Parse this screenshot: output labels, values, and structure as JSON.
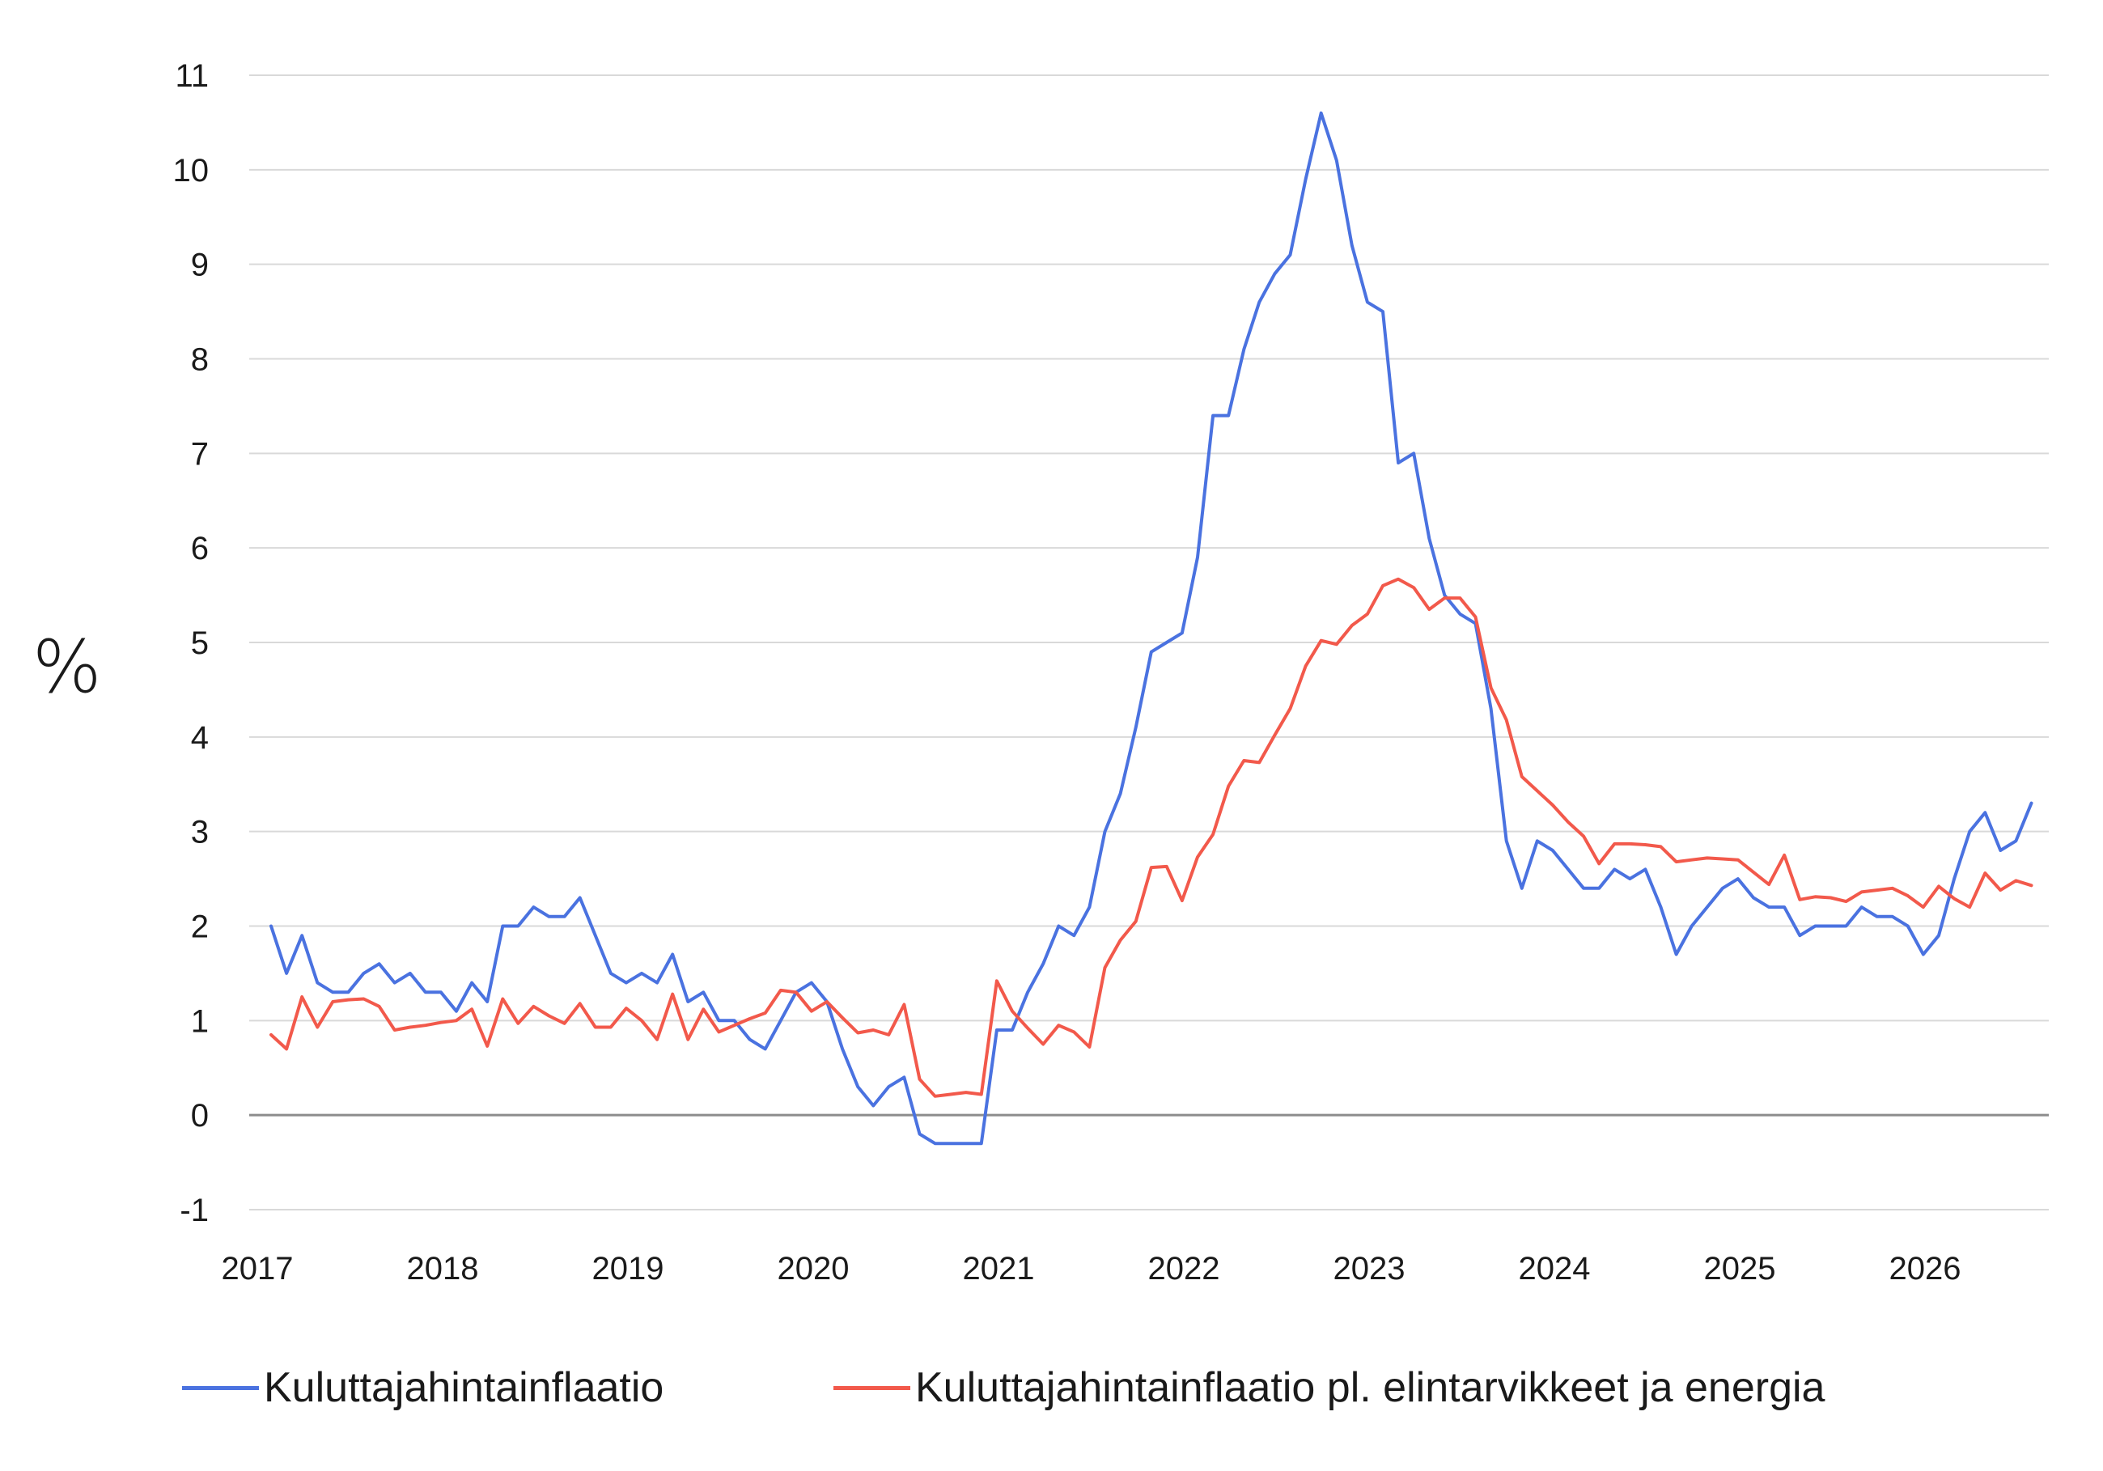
{
  "chart_data": {
    "type": "line",
    "title": "",
    "xlabel": "",
    "ylabel": "%",
    "ylim": [
      -1,
      11
    ],
    "yticks": [
      -1,
      0,
      1,
      2,
      3,
      4,
      5,
      6,
      7,
      8,
      9,
      10,
      11
    ],
    "xticks": [
      "2017",
      "2018",
      "2019",
      "2020",
      "2021",
      "2022",
      "2023",
      "2024",
      "2025",
      "2026"
    ],
    "grid": true,
    "legend_position": "bottom",
    "start": "2017-01",
    "frequency": "monthly",
    "series": [
      {
        "name": "Kuluttajahintainflaatio",
        "color": "#4a72e0",
        "values": [
          2.0,
          1.5,
          1.9,
          1.4,
          1.3,
          1.3,
          1.5,
          1.6,
          1.4,
          1.5,
          1.3,
          1.3,
          1.1,
          1.4,
          1.2,
          2.0,
          2.0,
          2.2,
          2.1,
          2.1,
          2.3,
          1.9,
          1.5,
          1.4,
          1.5,
          1.4,
          1.7,
          1.2,
          1.3,
          1.0,
          1.0,
          0.8,
          0.7,
          1.0,
          1.3,
          1.4,
          1.2,
          0.7,
          0.3,
          0.1,
          0.3,
          0.4,
          -0.2,
          -0.3,
          -0.3,
          -0.3,
          -0.3,
          0.9,
          0.9,
          1.3,
          1.6,
          2.0,
          1.9,
          2.2,
          3.0,
          3.4,
          4.1,
          4.9,
          5.0,
          5.1,
          5.9,
          7.4,
          7.4,
          8.1,
          8.6,
          8.9,
          9.1,
          9.9,
          10.6,
          10.1,
          9.2,
          8.6,
          8.5,
          6.9,
          7.0,
          6.1,
          5.5,
          5.3,
          5.2,
          4.3,
          2.9,
          2.4,
          2.9,
          2.8,
          2.6,
          2.4,
          2.4,
          2.6,
          2.5,
          2.6,
          2.2,
          1.7,
          2.0,
          2.2,
          2.4,
          2.5,
          2.3,
          2.2,
          2.2,
          1.9,
          2.0,
          2.0,
          2.0,
          2.2,
          2.1,
          2.1,
          2.0,
          1.7,
          1.9,
          2.5,
          3.0,
          3.2,
          2.8,
          2.9,
          3.3
        ]
      },
      {
        "name": "Kuluttajahintainflaatio pl. elintarvikkeet ja energia",
        "color": "#f2594b",
        "values": [
          0.85,
          0.7,
          1.25,
          0.93,
          1.2,
          1.22,
          1.23,
          1.15,
          0.9,
          0.93,
          0.95,
          0.98,
          1.0,
          1.12,
          0.73,
          1.23,
          0.97,
          1.15,
          1.05,
          0.97,
          1.18,
          0.93,
          0.93,
          1.13,
          1.0,
          0.8,
          1.28,
          0.8,
          1.12,
          0.88,
          0.95,
          1.02,
          1.08,
          1.32,
          1.3,
          1.1,
          1.2,
          1.03,
          0.87,
          0.9,
          0.85,
          1.17,
          0.38,
          0.2,
          0.22,
          0.24,
          0.22,
          1.42,
          1.1,
          0.92,
          0.75,
          0.95,
          0.88,
          0.72,
          1.56,
          1.85,
          2.05,
          2.62,
          2.63,
          2.27,
          2.73,
          2.97,
          3.48,
          3.75,
          3.73,
          4.02,
          4.3,
          4.75,
          5.02,
          4.98,
          5.18,
          5.3,
          5.6,
          5.67,
          5.58,
          5.35,
          5.47,
          5.47,
          5.27,
          4.52,
          4.18,
          3.58,
          3.43,
          3.28,
          3.1,
          2.95,
          2.66,
          2.87,
          2.87,
          2.86,
          2.84,
          2.68,
          2.7,
          2.72,
          2.71,
          2.7,
          2.57,
          2.44,
          2.75,
          2.28,
          2.31,
          2.3,
          2.26,
          2.36,
          2.38,
          2.4,
          2.32,
          2.2,
          2.42,
          2.29,
          2.2,
          2.56,
          2.38,
          2.48,
          2.43
        ]
      }
    ]
  }
}
